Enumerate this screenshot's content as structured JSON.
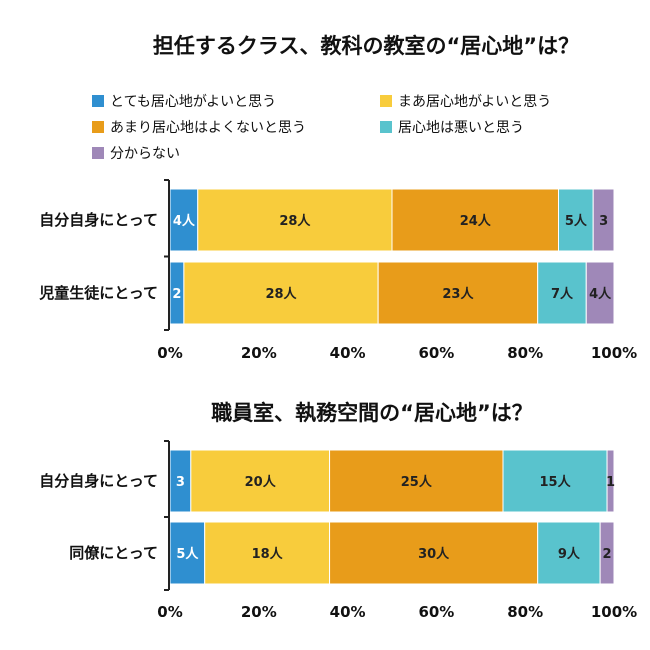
{
  "colors": {
    "s1": "#2f8fd0",
    "s2": "#f8cc3c",
    "s3": "#e89c1a",
    "s4": "#59c3cd",
    "s5": "#9f88b8",
    "axis": "#222222"
  },
  "legend": [
    "とても居心地がよいと思う",
    "まあ居心地がよいと思う",
    "あまり居心地はよくないと思う",
    "居心地は悪いと思う",
    "分からない"
  ],
  "chart_data": [
    {
      "type": "bar",
      "stacked": true,
      "orientation": "horizontal",
      "title": "担任するクラス、教科の教室の“居心地”は？",
      "categories": [
        "自分自身にとって",
        "児童生徒にとって"
      ],
      "series": [
        {
          "name": "とても居心地がよいと思う",
          "values": [
            4,
            2
          ],
          "labels": [
            "4人",
            "2"
          ]
        },
        {
          "name": "まあ居心地がよいと思う",
          "values": [
            28,
            28
          ],
          "labels": [
            "28人",
            "28人"
          ]
        },
        {
          "name": "あまり居心地はよくないと思う",
          "values": [
            24,
            23
          ],
          "labels": [
            "24人",
            "23人"
          ]
        },
        {
          "name": "居心地は悪いと思う",
          "values": [
            5,
            7
          ],
          "labels": [
            "5人",
            "7人"
          ]
        },
        {
          "name": "分からない",
          "values": [
            3,
            4
          ],
          "labels": [
            "3",
            "4人"
          ]
        }
      ],
      "xticks": [
        "0%",
        "20%",
        "40%",
        "60%",
        "80%",
        "100%"
      ],
      "xlim": [
        0,
        100
      ]
    },
    {
      "type": "bar",
      "stacked": true,
      "orientation": "horizontal",
      "title": "職員室、執務空間の“居心地”は？",
      "categories": [
        "自分自身にとって",
        "同僚にとって"
      ],
      "series": [
        {
          "name": "とても居心地がよいと思う",
          "values": [
            3,
            5
          ],
          "labels": [
            "3",
            "5人"
          ]
        },
        {
          "name": "まあ居心地がよいと思う",
          "values": [
            20,
            18
          ],
          "labels": [
            "20人",
            "18人"
          ]
        },
        {
          "name": "あまり居心地はよくないと思う",
          "values": [
            25,
            30
          ],
          "labels": [
            "25人",
            "30人"
          ]
        },
        {
          "name": "居心地は悪いと思う",
          "values": [
            15,
            9
          ],
          "labels": [
            "15人",
            "9人"
          ]
        },
        {
          "name": "分からない",
          "values": [
            1,
            2
          ],
          "labels": [
            "1",
            "2"
          ]
        }
      ],
      "xticks": [
        "0%",
        "20%",
        "40%",
        "60%",
        "80%",
        "100%"
      ],
      "xlim": [
        0,
        100
      ]
    }
  ]
}
